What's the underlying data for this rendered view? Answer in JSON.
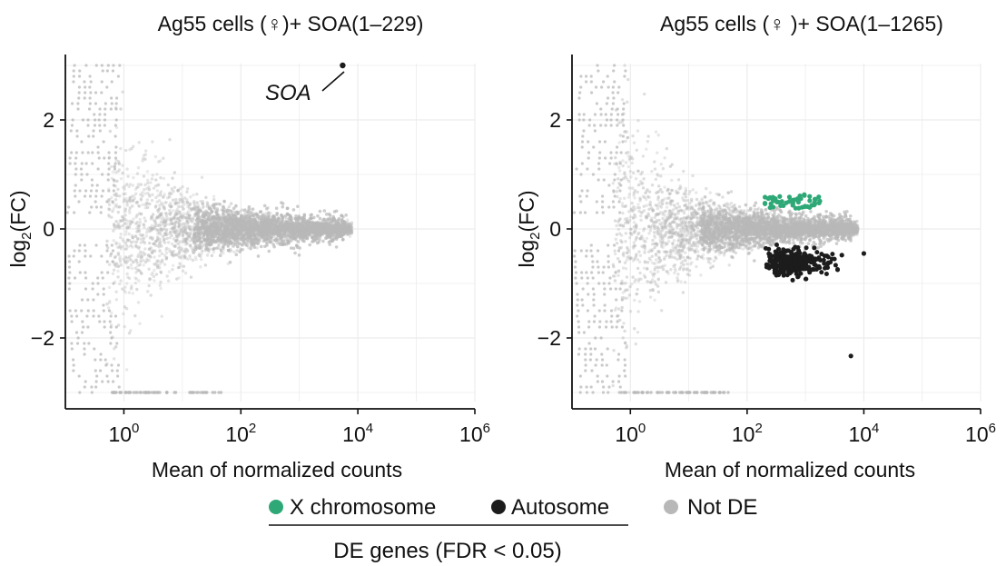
{
  "colors": {
    "x_chromosome": "#2ea876",
    "autosome": "#1c1c1c",
    "not_de": "#b8b8b8",
    "grid": "#ececec",
    "axis": "#111111"
  },
  "chart_data": [
    {
      "type": "scatter",
      "plot_kind": "MA plot",
      "title": "Ag55 cells (♀)+ SOA(1–229)",
      "xlabel": "Mean of normalized counts",
      "ylabel": "log2(FC)",
      "ylabel_parts": [
        "log",
        "2",
        "(FC)"
      ],
      "xscale": "log10",
      "xlim": [
        0.1,
        1000000
      ],
      "ylim": [
        -3.3,
        3.2
      ],
      "x_ticks": [
        1,
        100,
        10000,
        1000000
      ],
      "x_tick_labels": [
        {
          "base": "10",
          "exp": "0"
        },
        {
          "base": "10",
          "exp": "2"
        },
        {
          "base": "10",
          "exp": "4"
        },
        {
          "base": "10",
          "exp": "6"
        }
      ],
      "y_ticks": [
        2,
        0,
        -2
      ],
      "y_tick_labels": [
        "2",
        "0",
        "−2"
      ],
      "grid": true,
      "annotation": {
        "text": "SOA",
        "x": 5500,
        "y": 3.0,
        "label_x": 450,
        "label_y": 2.5
      },
      "series": [
        {
          "name": "Not DE",
          "color_key": "not_de",
          "description": "~20000 genes, funnel shape narrowing toward high counts"
        },
        {
          "name": "Autosome DE",
          "color_key": "autosome",
          "points": [
            [
              5500,
              3.0
            ]
          ]
        },
        {
          "name": "X chromosome DE",
          "color_key": "x_chromosome",
          "points": []
        }
      ]
    },
    {
      "type": "scatter",
      "plot_kind": "MA plot",
      "title": "Ag55 cells (♀ )+ SOA(1–1265)",
      "xlabel": "Mean of normalized counts",
      "ylabel": "log2(FC)",
      "ylabel_parts": [
        "log",
        "2",
        "(FC)"
      ],
      "xscale": "log10",
      "xlim": [
        0.1,
        1000000
      ],
      "ylim": [
        -3.3,
        3.2
      ],
      "x_ticks": [
        1,
        100,
        10000,
        1000000
      ],
      "x_tick_labels": [
        {
          "base": "10",
          "exp": "0"
        },
        {
          "base": "10",
          "exp": "2"
        },
        {
          "base": "10",
          "exp": "4"
        },
        {
          "base": "10",
          "exp": "6"
        }
      ],
      "y_ticks": [
        2,
        0,
        -2
      ],
      "y_tick_labels": [
        "2",
        "0",
        "−2"
      ],
      "grid": true,
      "series": [
        {
          "name": "Not DE",
          "color_key": "not_de",
          "description": "~20000 genes, funnel shape narrowing toward high counts"
        },
        {
          "name": "X chromosome DE",
          "color_key": "x_chromosome",
          "description": "~50 genes, mean counts 200–2000, log2FC ~ +0.35 to +0.65"
        },
        {
          "name": "Autosome DE",
          "color_key": "autosome",
          "description": "~300 genes, mean counts 200–3000, log2FC ~ -0.4 to -0.9",
          "outliers": [
            [
              6000,
              -2.33
            ],
            [
              4200,
              -0.48
            ],
            [
              10000,
              -0.45
            ]
          ]
        }
      ]
    }
  ],
  "legend": {
    "items": [
      {
        "label": "X chromosome",
        "color_key": "x_chromosome"
      },
      {
        "label": "Autosome",
        "color_key": "autosome"
      },
      {
        "label": "Not DE",
        "color_key": "not_de"
      }
    ],
    "caption": "DE genes (FDR < 0.05)"
  }
}
